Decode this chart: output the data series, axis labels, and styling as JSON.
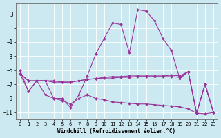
{
  "xlabel": "Windchill (Refroidissement éolien,°C)",
  "bg_color": "#cce8f0",
  "grid_color": "#aaccdd",
  "line_color": "#993399",
  "xlim": [
    -0.5,
    23.5
  ],
  "ylim": [
    -12,
    4.5
  ],
  "yticks": [
    3,
    1,
    -1,
    -3,
    -5,
    -7,
    -9,
    -11
  ],
  "xticks": [
    0,
    1,
    2,
    3,
    4,
    5,
    6,
    7,
    8,
    9,
    10,
    11,
    12,
    13,
    14,
    15,
    16,
    17,
    18,
    19,
    20,
    21,
    22,
    23
  ],
  "hours": [
    0,
    1,
    2,
    3,
    4,
    5,
    6,
    7,
    8,
    9,
    10,
    11,
    12,
    13,
    14,
    15,
    16,
    17,
    18,
    19,
    20,
    21,
    22,
    23
  ],
  "line1": [
    -5.0,
    -8.0,
    -6.5,
    -6.5,
    -9.0,
    -9.0,
    -10.3,
    -8.5,
    -5.8,
    -2.7,
    -0.5,
    1.7,
    1.5,
    -2.5,
    3.6,
    3.4,
    2.0,
    -0.5,
    -2.2,
    -6.2,
    -5.2,
    -11.1,
    -7.0,
    -11.0
  ],
  "line2": [
    -5.5,
    -6.5,
    -6.5,
    -6.5,
    -6.5,
    -6.7,
    -6.7,
    -6.5,
    -6.3,
    -6.2,
    -6.0,
    -5.9,
    -5.9,
    -5.8,
    -5.8,
    -5.8,
    -5.8,
    -5.8,
    -5.7,
    -5.8,
    -5.2,
    -11.1,
    -7.0,
    -11.0
  ],
  "line3": [
    -5.5,
    -6.5,
    -6.5,
    -6.5,
    -6.7,
    -6.7,
    -6.7,
    -6.5,
    -6.3,
    -6.2,
    -6.1,
    -6.1,
    -6.0,
    -6.0,
    -5.9,
    -5.9,
    -5.9,
    -5.9,
    -5.9,
    -6.0,
    -5.2,
    -11.1,
    -7.0,
    -11.0
  ],
  "line4": [
    -5.5,
    -8.0,
    -6.5,
    -8.5,
    -9.0,
    -9.3,
    -9.8,
    -9.0,
    -8.5,
    -9.0,
    -9.2,
    -9.5,
    -9.6,
    -9.7,
    -9.8,
    -9.8,
    -9.9,
    -10.0,
    -10.1,
    -10.2,
    -10.5,
    -11.1,
    -11.2,
    -11.0
  ],
  "lw": 0.8,
  "ms": 2.0,
  "tick_fontsize": 5.0,
  "xlabel_fontsize": 5.5
}
